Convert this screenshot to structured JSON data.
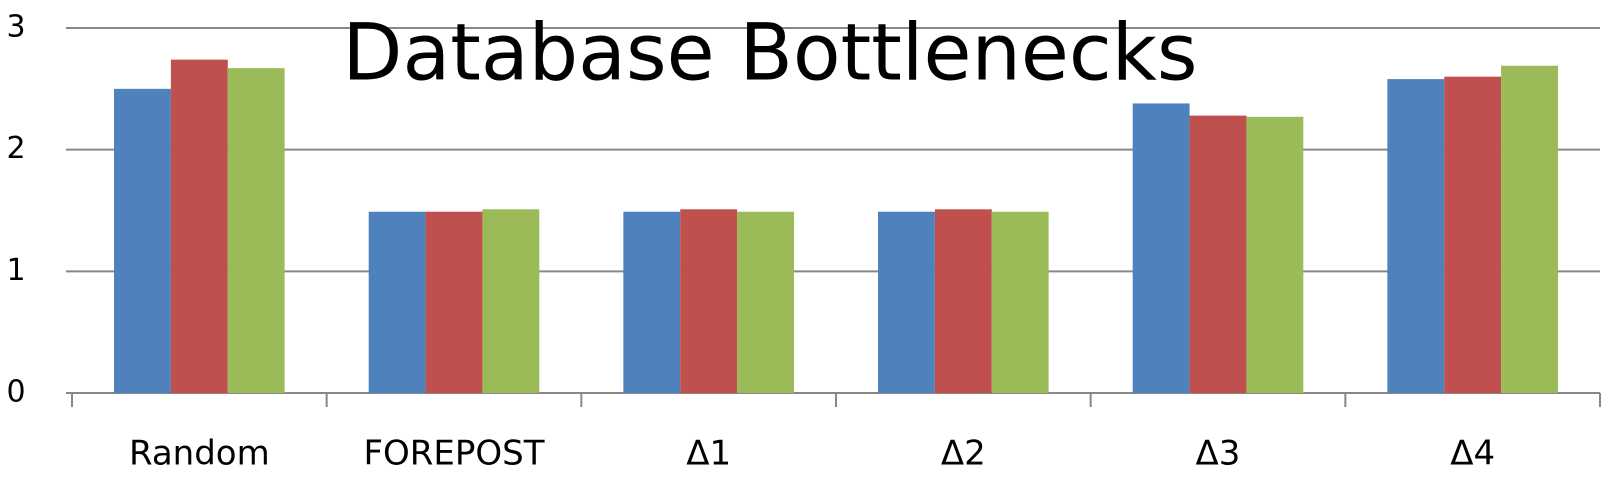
{
  "chart_data": {
    "type": "bar",
    "title": "Database Bottlenecks",
    "categories": [
      "Random",
      "FOREPOST",
      "Δ1",
      "Δ2",
      "Δ3",
      "Δ4"
    ],
    "series": [
      {
        "color": "#4f81bd",
        "values": [
          2.5,
          1.49,
          1.49,
          1.49,
          2.38,
          2.58
        ]
      },
      {
        "color": "#c0504d",
        "values": [
          2.74,
          1.49,
          1.51,
          1.51,
          2.28,
          2.6
        ]
      },
      {
        "color": "#9bbb59",
        "values": [
          2.67,
          1.51,
          1.49,
          1.49,
          2.27,
          2.69
        ]
      }
    ],
    "ylim": [
      0,
      3
    ],
    "yticks": [
      0,
      1,
      2,
      3
    ],
    "grid": true
  }
}
